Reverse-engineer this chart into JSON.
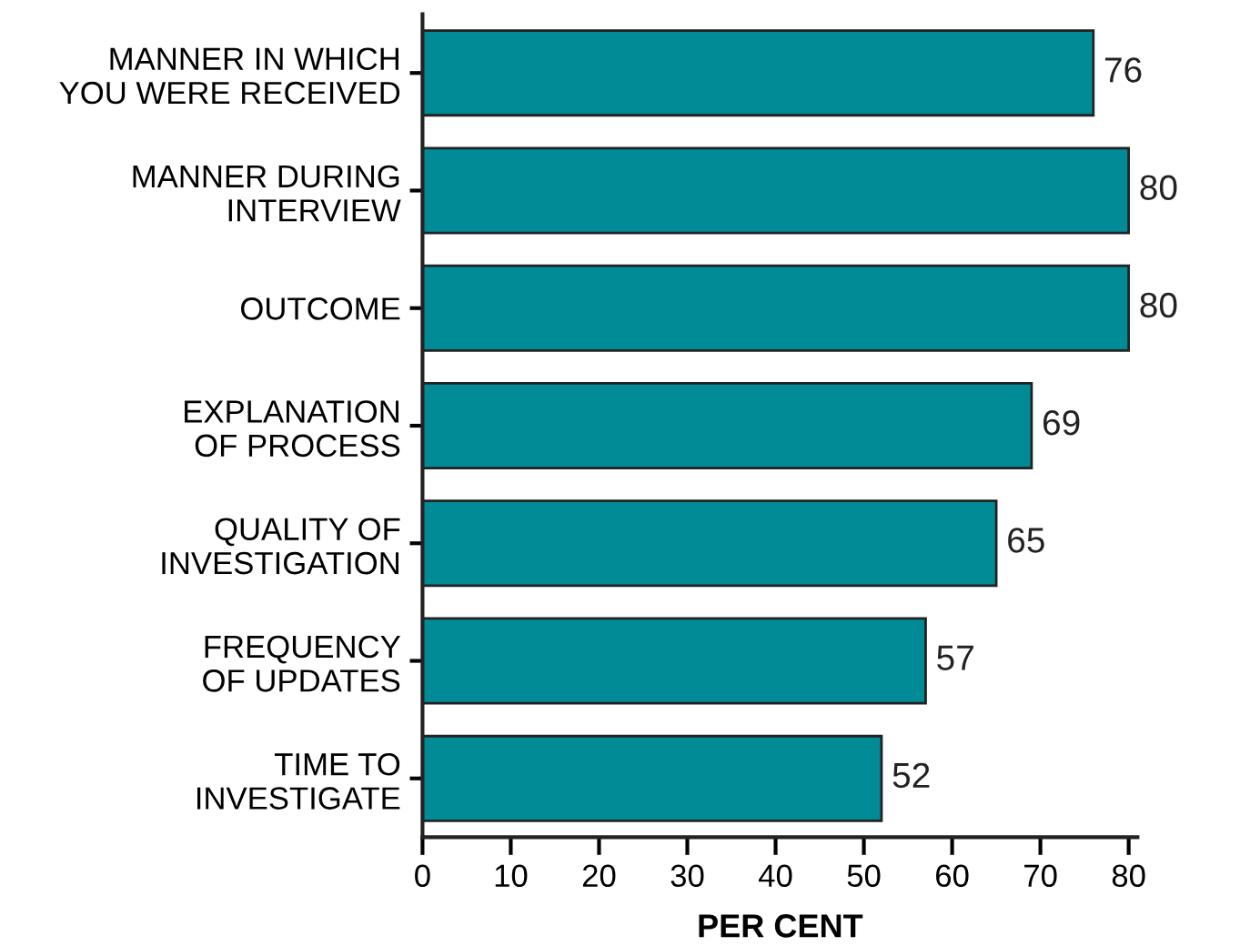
{
  "chart_data": {
    "type": "bar",
    "orientation": "horizontal",
    "xlabel": "PER CENT",
    "categories": [
      "MANNER IN WHICH\nYOU WERE RECEIVED",
      "MANNER DURING\nINTERVIEW",
      "OUTCOME",
      "EXPLANATION\nOF PROCESS",
      "QUALITY OF\nINVESTIGATION",
      "FREQUENCY\nOF UPDATES",
      "TIME TO\nINVESTIGATE"
    ],
    "values": [
      76,
      80,
      80,
      69,
      65,
      57,
      52
    ],
    "color": "#008b96",
    "xlim": [
      0,
      81
    ],
    "xticks": [
      0,
      10,
      20,
      30,
      40,
      50,
      60,
      70,
      80
    ],
    "data_labels": true,
    "grid": false,
    "legend": false
  }
}
